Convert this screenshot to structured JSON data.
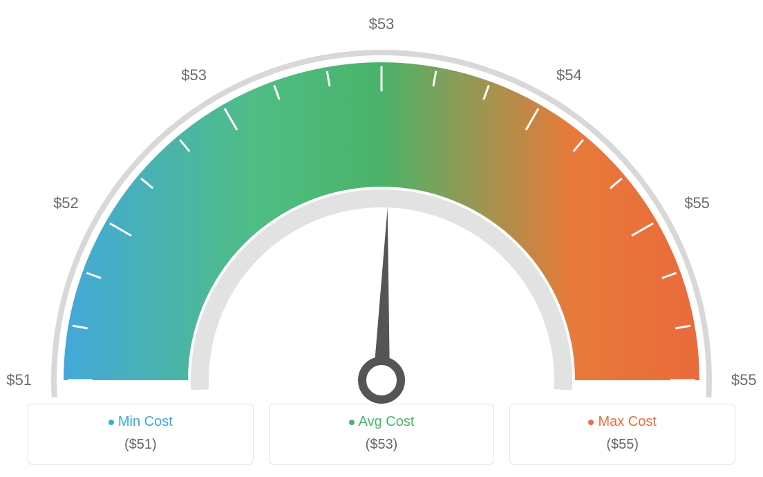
{
  "gauge": {
    "type": "gauge",
    "min_value": 51,
    "max_value": 55,
    "current_value": 53,
    "tick_labels": [
      "$51",
      "$52",
      "$53",
      "$53",
      "$54",
      "$55",
      "$55"
    ],
    "tick_label_angles_deg": [
      180,
      150,
      120,
      90,
      60,
      30,
      0
    ],
    "label_fontsize": 22,
    "label_color": "#6a6a6a",
    "outer_arc_color": "#d8d8d8",
    "inner_arc_color": "#e2e2e2",
    "colored_arc_outer_radius": 460,
    "colored_arc_inner_radius": 280,
    "gradient_colors": [
      "#43a8db",
      "#4fbd84",
      "#4ab36a",
      "#e87a3a",
      "#ea6a3c"
    ],
    "gradient_stops_pct": [
      0,
      30,
      50,
      80,
      100
    ],
    "tick_mark_color": "#ffffff",
    "tick_mark_width": 3,
    "needle_color": "#555555",
    "needle_angle_deg": 88,
    "background_color": "#ffffff"
  },
  "legend": {
    "border_color": "#e3e3e3",
    "border_radius": 6,
    "items": [
      {
        "label": "Min Cost",
        "value": "($51)",
        "color": "#39a8dd",
        "value_color": "#666666"
      },
      {
        "label": "Avg Cost",
        "value": "($53)",
        "color": "#46b56a",
        "value_color": "#666666"
      },
      {
        "label": "Max Cost",
        "value": "($55)",
        "color": "#ea6e3e",
        "value_color": "#666666"
      }
    ]
  }
}
